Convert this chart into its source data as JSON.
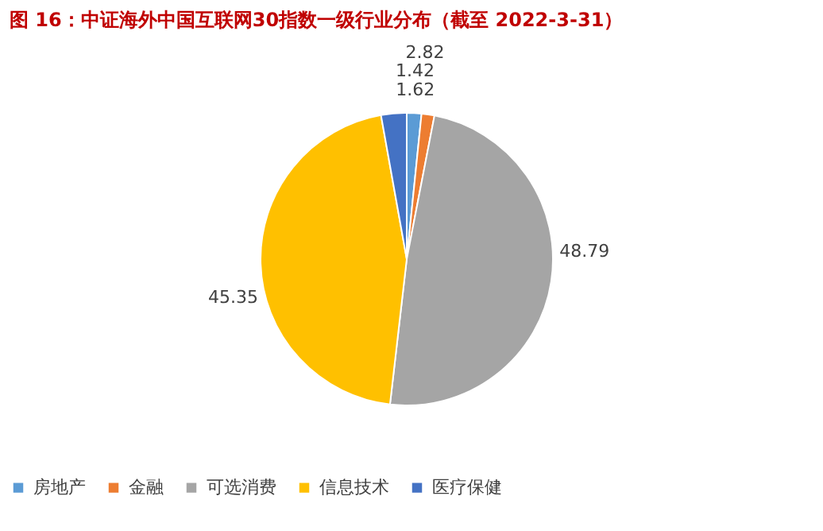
{
  "chart_data": {
    "type": "pie",
    "title": "图 16：中证海外中国互联网30指数一级行业分布（截至 2022-3-31）",
    "categories": [
      "房地产",
      "金融",
      "可选消费",
      "信息技术",
      "医疗保健"
    ],
    "values": [
      1.62,
      1.42,
      48.79,
      45.35,
      2.82
    ],
    "colors": [
      "#5b9bd5",
      "#ed7d31",
      "#a5a5a5",
      "#ffc000",
      "#4472c4"
    ],
    "data_labels": true,
    "legend": "bottom"
  }
}
